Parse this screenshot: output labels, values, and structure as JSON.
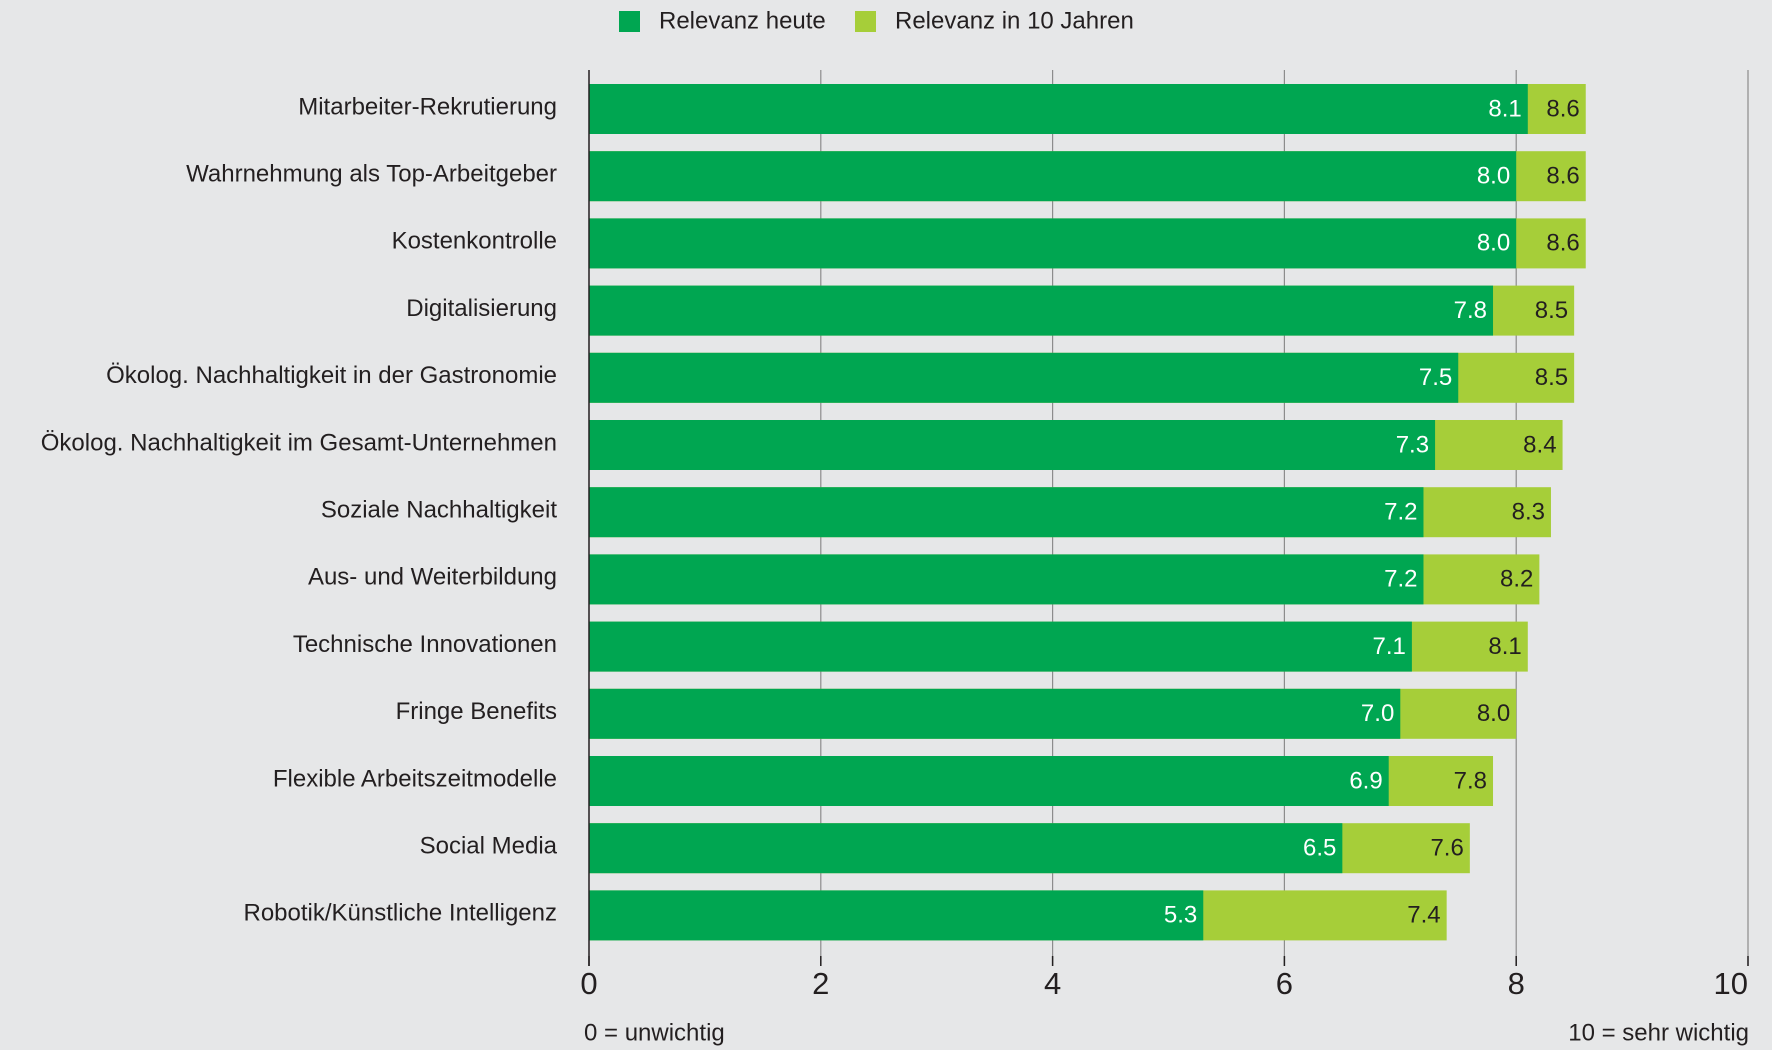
{
  "chart_data": {
    "type": "bar",
    "orientation": "horizontal",
    "overlap": true,
    "categories": [
      "Mitarbeiter-Rekrutierung",
      "Wahrnehmung als Top-Arbeitgeber",
      "Kostenkontrolle",
      "Digitalisierung",
      "Ökolog. Nachhaltigkeit in der Gastronomie",
      "Ökolog. Nachhaltigkeit im Gesamt-Unternehmen",
      "Soziale Nachhaltigkeit",
      "Aus- und Weiterbildung",
      "Technische Innovationen",
      "Fringe Benefits",
      "Flexible Arbeitszeitmodelle",
      "Social Media",
      "Robotik/Künstliche Intelligenz"
    ],
    "series": [
      {
        "name": "Relevanz heute",
        "color": "#00a651",
        "values": [
          8.1,
          8.0,
          8.0,
          7.8,
          7.5,
          7.3,
          7.2,
          7.2,
          7.1,
          7.0,
          6.9,
          6.5,
          5.3
        ],
        "value_labels": [
          "8.1",
          "8.0",
          "8.0",
          "7.8",
          "7.5",
          "7.3",
          "7.2",
          "7.2",
          "7.1",
          "7.0",
          "6.9",
          "6.5",
          "5.3"
        ]
      },
      {
        "name": "Relevanz in 10 Jahren",
        "color": "#a6ce39",
        "values": [
          8.6,
          8.6,
          8.6,
          8.5,
          8.5,
          8.4,
          8.3,
          8.2,
          8.1,
          8.0,
          7.8,
          7.6,
          7.4
        ],
        "value_labels": [
          "8.6",
          "8.6",
          "8.6",
          "8.5",
          "8.5",
          "8.4",
          "8.3",
          "8.2",
          "8.1",
          "8.0",
          "7.8",
          "7.6",
          "7.4"
        ]
      }
    ],
    "xlim": [
      0,
      10
    ],
    "xticks": [
      0,
      2,
      4,
      6,
      8,
      10
    ],
    "grid": true,
    "legend": "top",
    "annotations": [
      "0 = unwichtig",
      "10 = sehr wichtig"
    ]
  }
}
